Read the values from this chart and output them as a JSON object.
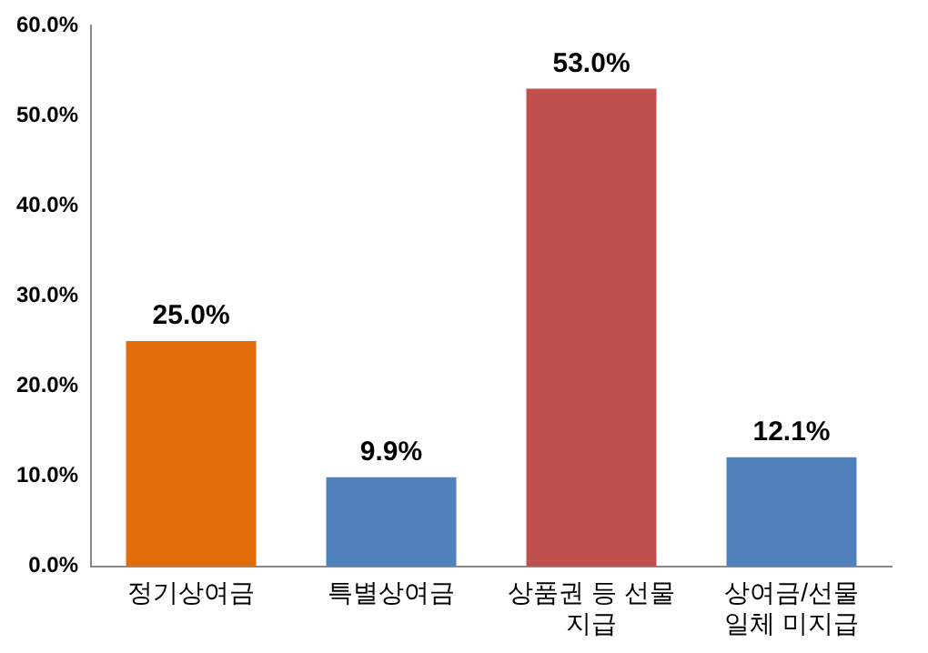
{
  "chart_data": {
    "type": "bar",
    "categories": [
      "정기상여금",
      "특별상여금",
      "상품권 등 선물 지급",
      "상여금/선물 일체 미지급"
    ],
    "values": [
      25.0,
      9.9,
      53.0,
      12.1
    ],
    "colors": [
      "#e36c0a",
      "#4f81bd",
      "#c0504d",
      "#4f81bd"
    ],
    "value_labels": [
      "25.0%",
      "9.9%",
      "53.0%",
      "12.1%"
    ],
    "ylim": [
      0,
      60
    ],
    "yticks": [
      {
        "value": 0,
        "label": "0.0%"
      },
      {
        "value": 10,
        "label": "10.0%"
      },
      {
        "value": 20,
        "label": "20.0%"
      },
      {
        "value": 30,
        "label": "30.0%"
      },
      {
        "value": 40,
        "label": "40.0%"
      },
      {
        "value": 50,
        "label": "50.0%"
      },
      {
        "value": 60,
        "label": "60.0%"
      }
    ],
    "grid": false,
    "legend": false
  }
}
